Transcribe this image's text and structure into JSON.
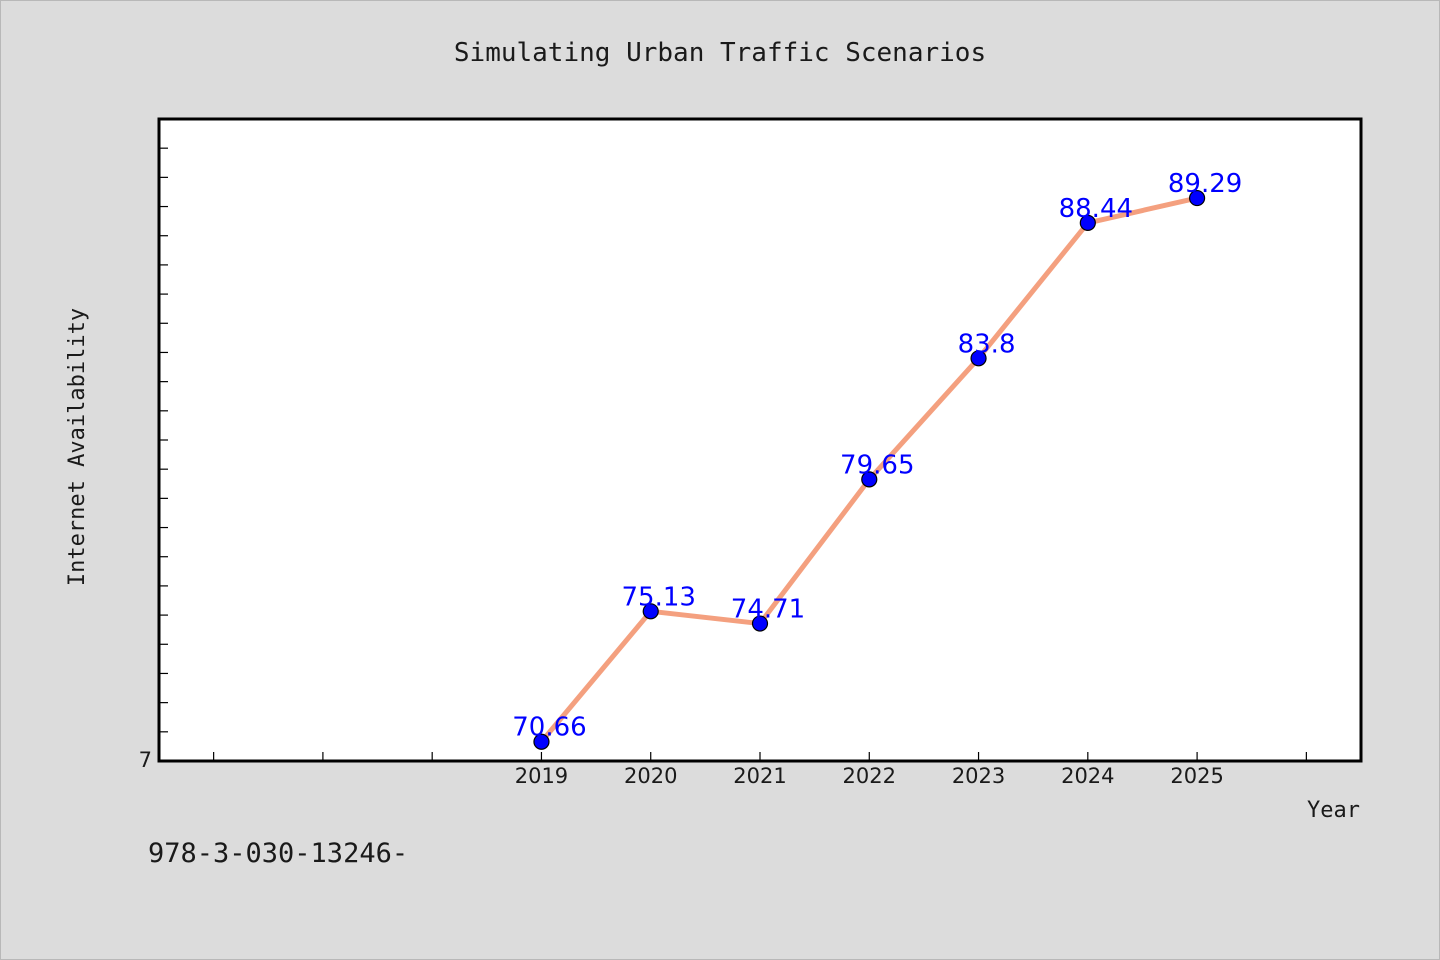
{
  "chart_data": {
    "type": "line",
    "title": "Simulating Urban Traffic Scenarios",
    "xlabel": "Year",
    "ylabel": "Internet Availability",
    "x": [
      "2019",
      "2020",
      "2021",
      "2022",
      "2023",
      "2024",
      "2025"
    ],
    "series": [
      {
        "values": [
          70.66,
          75.13,
          74.71,
          79.65,
          83.8,
          88.44,
          89.29
        ]
      }
    ],
    "data_labels": [
      "70.66",
      "75.13",
      "74.71",
      "79.65",
      "83.8",
      "88.44",
      "89.29"
    ],
    "x_domain": [
      2015.5,
      2026.5
    ],
    "ylim": [
      70,
      92
    ],
    "y_tick_labels": [
      "7"
    ],
    "grid": false,
    "legend": "none",
    "colors": {
      "line": "#f4a07f",
      "marker": "#0000ff",
      "data_label": "#0000ff",
      "background": "#dcdcdc",
      "plot_background": "#ffffff"
    }
  },
  "footnote": "978-3-030-13246-"
}
